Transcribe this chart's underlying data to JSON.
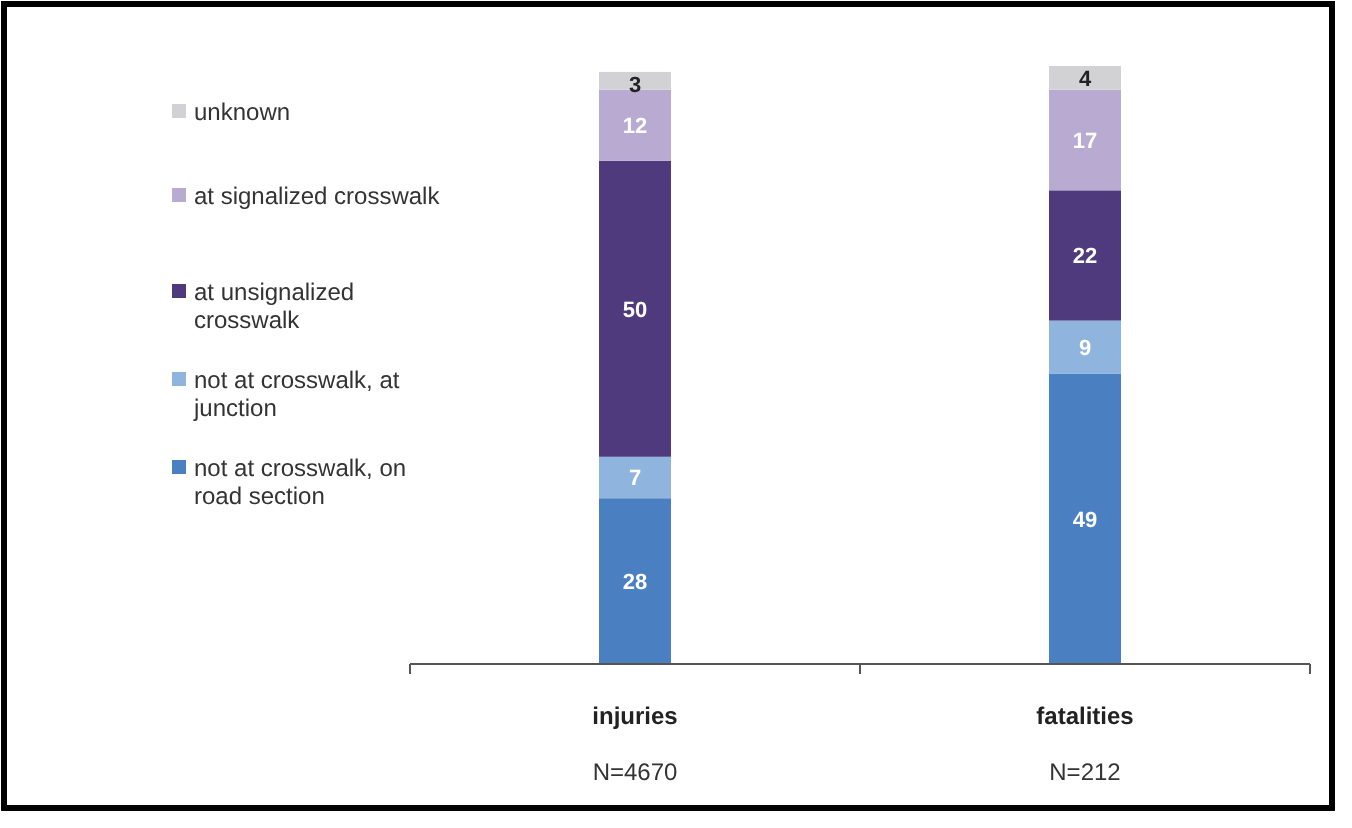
{
  "chart_data": {
    "type": "bar",
    "stacked": true,
    "categories": [
      "injuries",
      "fatalities"
    ],
    "series": [
      {
        "name": "not at crosswalk, on road section",
        "color": "#4a7fc1",
        "values": [
          28,
          49
        ]
      },
      {
        "name": "not at crosswalk, at junction",
        "color": "#8fb4de",
        "values": [
          7,
          9
        ]
      },
      {
        "name": "at unsignalized crosswalk",
        "color": "#4f3a7e",
        "values": [
          50,
          22
        ]
      },
      {
        "name": "at signalized crosswalk",
        "color": "#b9aad2",
        "values": [
          12,
          17
        ]
      },
      {
        "name": "unknown",
        "color": "#d2d2d4",
        "values": [
          3,
          4
        ]
      }
    ],
    "data_labels": true,
    "legend": "left",
    "annotations": [
      "N=4670",
      "N=212"
    ]
  }
}
